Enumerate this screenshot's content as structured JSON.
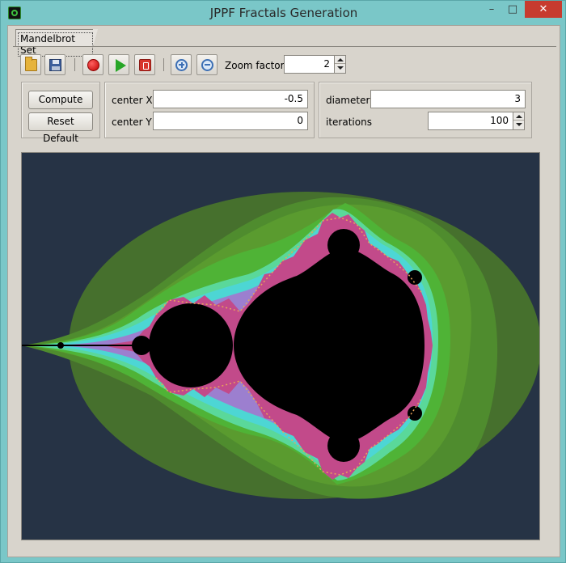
{
  "window": {
    "title": "JPPF Fractals Generation",
    "min_glyph": "–",
    "max_glyph": "□",
    "close_glyph": "✕"
  },
  "tabs": [
    {
      "label": "Mandelbrot Set",
      "selected": true
    }
  ],
  "toolbar": {
    "icons": [
      "folder-icon",
      "save-icon",
      "record-icon",
      "play-icon",
      "stop-icon",
      "zoom-in-icon",
      "zoom-out-icon"
    ],
    "zoom_factor_label": "Zoom factor",
    "zoom_factor_value": "2"
  },
  "actions": {
    "compute_label": "Compute",
    "reset_label": "Reset Default"
  },
  "center": {
    "x_label": "center X",
    "x_value": "-0.5",
    "y_label": "center Y",
    "y_value": "0"
  },
  "params": {
    "diameter_label": "diameter",
    "diameter_value": "3",
    "iterations_label": "iterations",
    "iterations_value": "100"
  },
  "colors": {
    "window_frame": "#7ac7c8",
    "close_button": "#c73b2f",
    "panel_bg": "#d8d4cc",
    "fractal_bg": "#263345",
    "set_interior": "#000000",
    "band_colors": [
      "#46702d",
      "#4f8c2e",
      "#5a9b2f",
      "#4fb336",
      "#5ad89a",
      "#4dd6d4",
      "#7db7e6",
      "#9c7fcf",
      "#c24a8a",
      "#e8a45a"
    ]
  }
}
